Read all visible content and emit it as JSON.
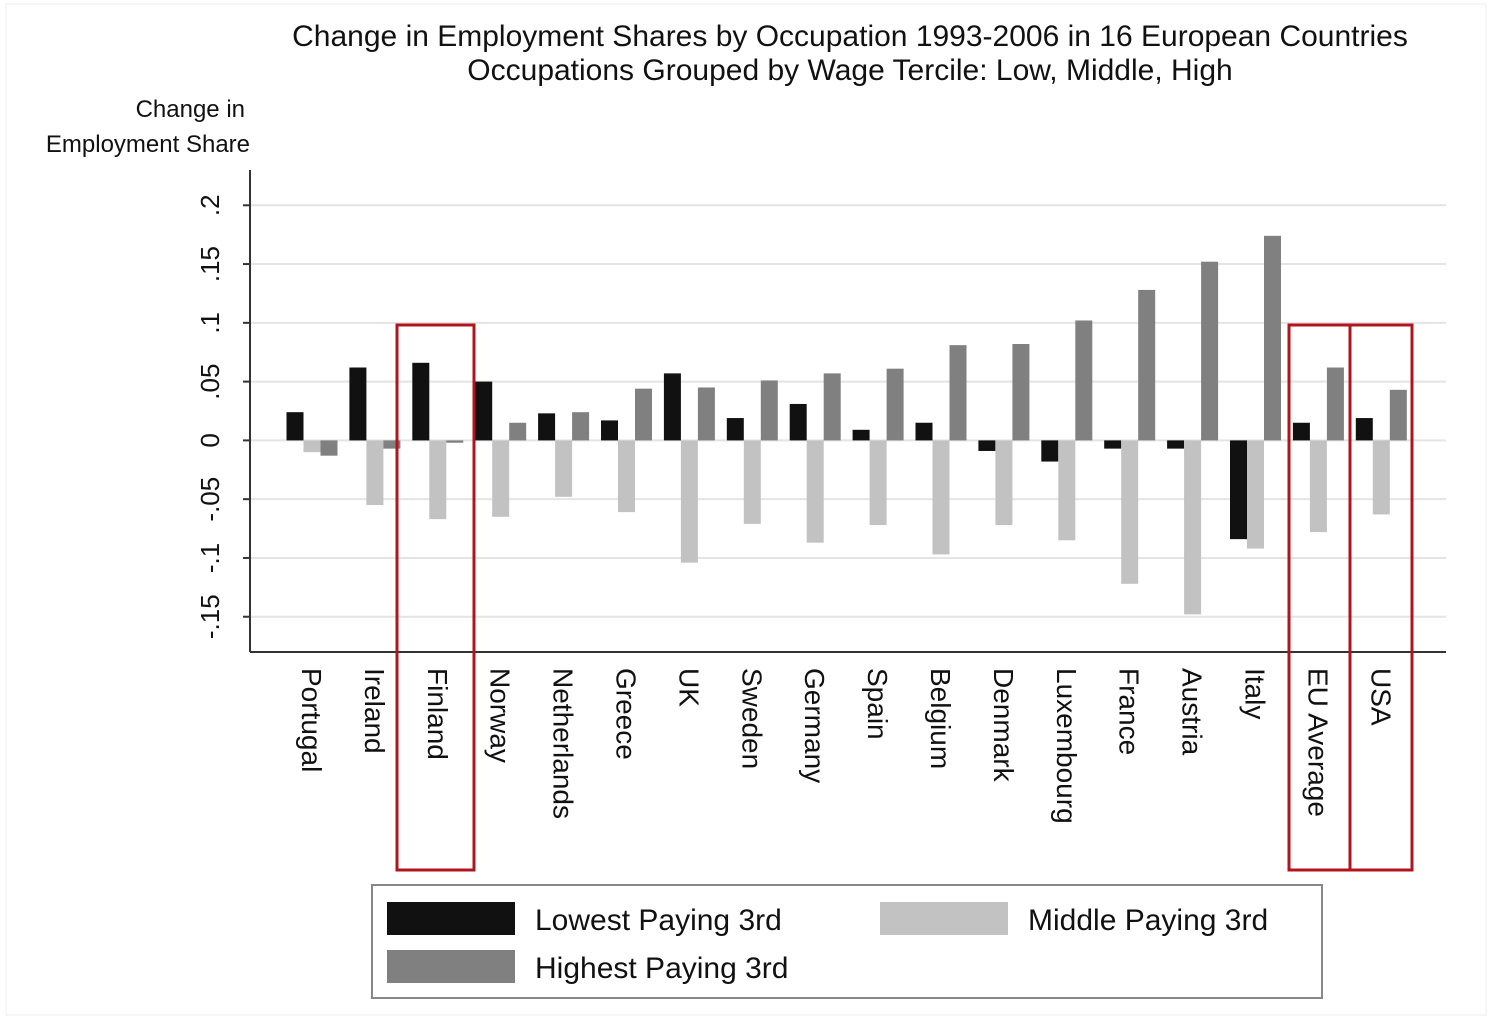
{
  "chart_data": {
    "type": "bar",
    "title": "Change in Employment Shares by Occupation 1993-2006 in 16 European Countries",
    "subtitle": "Occupations Grouped by Wage Tercile: Low, Middle, High",
    "y_label": [
      "Change in",
      "Employment Share"
    ],
    "categories": [
      "Portugal",
      "Ireland",
      "Finland",
      "Norway",
      "Netherlands",
      "Greece",
      "UK",
      "Sweden",
      "Germany",
      "Spain",
      "Belgium",
      "Denmark",
      "Luxembourg",
      "France",
      "Austria",
      "Italy",
      "EU Average",
      "USA"
    ],
    "series": [
      {
        "name": "Lowest Paying 3rd",
        "color": "#111111",
        "values": [
          0.024,
          0.062,
          0.066,
          0.05,
          0.023,
          0.017,
          0.057,
          0.019,
          0.031,
          0.009,
          0.015,
          -0.009,
          -0.018,
          -0.007,
          -0.007,
          -0.084,
          0.015,
          0.019
        ]
      },
      {
        "name": "Middle Paying 3rd",
        "color": "#c2c2c2",
        "values": [
          -0.01,
          -0.055,
          -0.067,
          -0.065,
          -0.048,
          -0.061,
          -0.104,
          -0.071,
          -0.087,
          -0.072,
          -0.097,
          -0.072,
          -0.085,
          -0.122,
          -0.148,
          -0.092,
          -0.078,
          -0.063
        ]
      },
      {
        "name": "Highest Paying 3rd",
        "color": "#808080",
        "values": [
          -0.013,
          -0.007,
          -0.002,
          0.015,
          0.024,
          0.044,
          0.045,
          0.051,
          0.057,
          0.061,
          0.081,
          0.082,
          0.102,
          0.128,
          0.152,
          0.174,
          0.062,
          0.043
        ]
      }
    ],
    "ylim": [
      -0.18,
      0.23
    ],
    "yticks": [
      {
        "value": -0.15,
        "label": "-.15"
      },
      {
        "value": -0.1,
        "label": "-.1"
      },
      {
        "value": -0.05,
        "label": "-.05"
      },
      0,
      {
        "value": 0.05,
        "label": ".05"
      },
      {
        "value": 0.1,
        "label": ".1"
      },
      {
        "value": 0.15,
        "label": ".15"
      },
      {
        "value": 0.2,
        "label": ".2"
      }
    ],
    "grid": true
  }
}
